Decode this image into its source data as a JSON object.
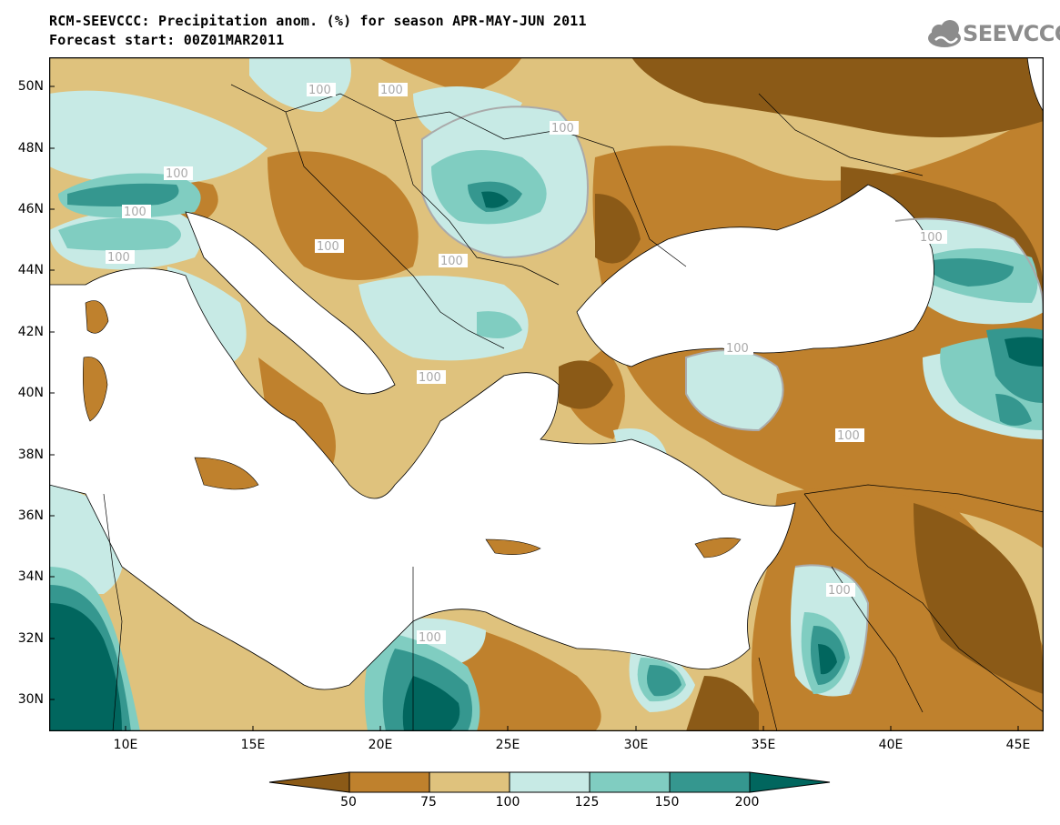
{
  "header": {
    "title_line1": "RCM-SEEVCCC: Precipitation anom. (%) for season APR-MAY-JUN 2011",
    "title_line2": "Forecast start: 00Z01MAR2011",
    "logo_text": "SEEVCCC"
  },
  "map": {
    "lat_labels": [
      "50N",
      "48N",
      "46N",
      "44N",
      "42N",
      "40N",
      "38N",
      "36N",
      "34N",
      "32N",
      "30N"
    ],
    "lon_labels": [
      "10E",
      "15E",
      "20E",
      "25E",
      "30E",
      "35E",
      "40E",
      "45E"
    ],
    "contour_label": "100",
    "extent": {
      "lon_min": 7,
      "lon_max": 46,
      "lat_min": 29,
      "lat_max": 51
    }
  },
  "legend": {
    "bins": [
      {
        "range": "<50",
        "color": "#8b5a17"
      },
      {
        "range": "50-75",
        "color": "#bf812d"
      },
      {
        "range": "75-100",
        "color": "#dfc27d"
      },
      {
        "range": "100-125",
        "color": "#c7eae5"
      },
      {
        "range": "125-150",
        "color": "#80cdc1"
      },
      {
        "range": "150-200",
        "color": "#35978f"
      },
      {
        "range": ">200",
        "color": "#01665e"
      }
    ],
    "labels": [
      "50",
      "75",
      "100",
      "125",
      "150",
      "200"
    ]
  }
}
